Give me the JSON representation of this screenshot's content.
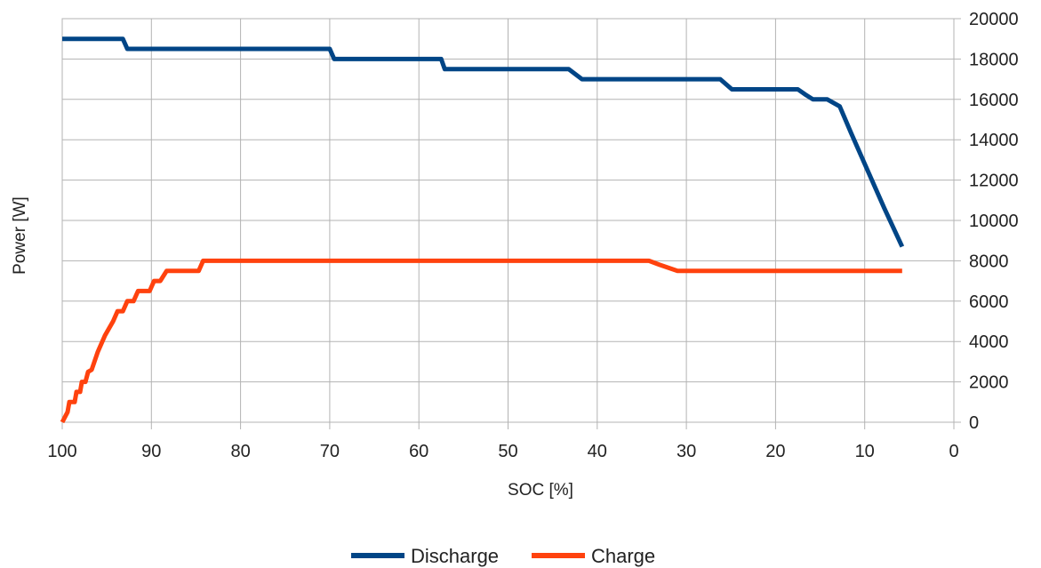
{
  "chart_data": {
    "type": "line",
    "title": "",
    "xlabel": "SOC [%]",
    "ylabel": "Power [W]",
    "xlim": [
      100,
      0
    ],
    "ylim": [
      0,
      20000
    ],
    "x_ticks": [
      "100",
      "90",
      "80",
      "70",
      "60",
      "50",
      "40",
      "30",
      "20",
      "10",
      "0"
    ],
    "y_ticks": [
      "20000",
      "18000",
      "16000",
      "14000",
      "12000",
      "10000",
      "8000",
      "6000",
      "4000",
      "2000",
      "0"
    ],
    "y_axis_side": "right",
    "x_reversed": true,
    "grid": true,
    "legend_position": "bottom-center",
    "series": [
      {
        "name": "Discharge",
        "color": "#004586",
        "points": [
          [
            100,
            19000
          ],
          [
            93.2,
            19000
          ],
          [
            92.7,
            18500
          ],
          [
            70,
            18500
          ],
          [
            69.5,
            18000
          ],
          [
            57.5,
            18000
          ],
          [
            57.1,
            17500
          ],
          [
            43.2,
            17500
          ],
          [
            41.7,
            17000
          ],
          [
            26.2,
            17000
          ],
          [
            24.9,
            16500
          ],
          [
            17.5,
            16500
          ],
          [
            16.7,
            16250
          ],
          [
            15.8,
            16000
          ],
          [
            14.2,
            16000
          ],
          [
            12.8,
            15650
          ],
          [
            11.5,
            14300
          ],
          [
            10,
            12800
          ],
          [
            7.8,
            10600
          ],
          [
            5.8,
            8700
          ]
        ]
      },
      {
        "name": "Charge",
        "color": "#ff420e",
        "points": [
          [
            100,
            0
          ],
          [
            99.4,
            500
          ],
          [
            99.2,
            1000
          ],
          [
            98.6,
            1000
          ],
          [
            98.4,
            1500
          ],
          [
            98,
            1500
          ],
          [
            97.8,
            2000
          ],
          [
            97.4,
            2000
          ],
          [
            97.1,
            2500
          ],
          [
            96.7,
            2600
          ],
          [
            96,
            3500
          ],
          [
            95.2,
            4300
          ],
          [
            94.3,
            5000
          ],
          [
            93.8,
            5500
          ],
          [
            93.2,
            5500
          ],
          [
            92.7,
            6000
          ],
          [
            92,
            6000
          ],
          [
            91.5,
            6500
          ],
          [
            90.2,
            6500
          ],
          [
            89.7,
            7000
          ],
          [
            89,
            7000
          ],
          [
            88.3,
            7500
          ],
          [
            84.7,
            7500
          ],
          [
            84.2,
            8000
          ],
          [
            34.2,
            8000
          ],
          [
            33,
            7800
          ],
          [
            31,
            7500
          ],
          [
            5.8,
            7500
          ]
        ]
      }
    ]
  }
}
